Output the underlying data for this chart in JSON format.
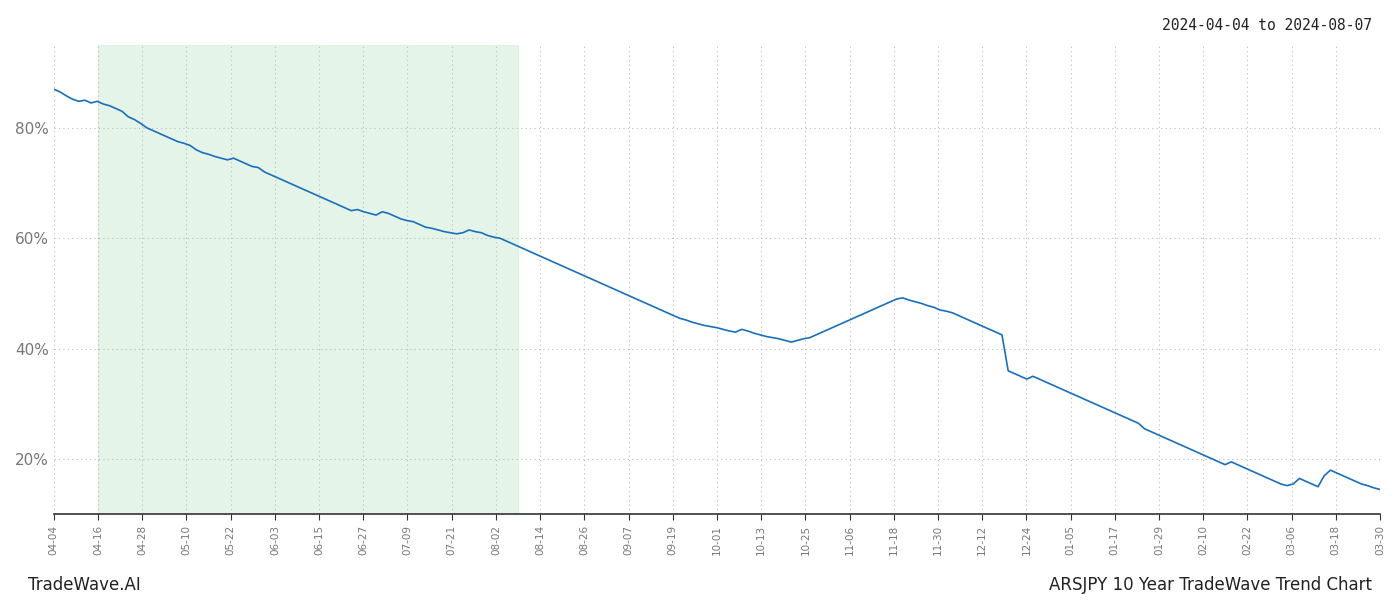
{
  "title_top_right": "2024-04-04 to 2024-08-07",
  "footer_left": "TradeWave.AI",
  "footer_right": "ARSJPY 10 Year TradeWave Trend Chart",
  "line_color": "#1a6fba",
  "line_width": 1.2,
  "shade_color": "#d4edda",
  "shade_alpha": 0.6,
  "background_color": "#ffffff",
  "grid_color": "#bbbbbb",
  "tick_label_color": "#777777",
  "x_labels": [
    "04-04",
    "04-16",
    "04-28",
    "05-10",
    "05-22",
    "06-03",
    "06-15",
    "06-27",
    "07-09",
    "07-21",
    "08-02",
    "08-14",
    "08-26",
    "09-07",
    "09-19",
    "10-01",
    "10-13",
    "10-25",
    "11-06",
    "11-18",
    "11-30",
    "12-12",
    "12-24",
    "01-05",
    "01-17",
    "01-29",
    "02-10",
    "02-22",
    "03-06",
    "03-18",
    "03-30"
  ],
  "shade_start_label": "04-16",
  "shade_end_label": "08-08",
  "ylim": [
    10,
    95
  ],
  "yticks": [
    20,
    40,
    60,
    80
  ],
  "y_values": [
    87.0,
    86.5,
    85.8,
    85.2,
    84.8,
    85.0,
    84.5,
    84.8,
    84.3,
    84.0,
    83.5,
    83.0,
    82.0,
    81.5,
    80.8,
    80.0,
    79.5,
    79.0,
    78.5,
    78.0,
    77.5,
    77.2,
    76.8,
    76.0,
    75.5,
    75.2,
    74.8,
    74.5,
    74.2,
    74.5,
    74.0,
    73.5,
    73.0,
    72.8,
    72.0,
    71.5,
    71.0,
    70.5,
    70.0,
    69.5,
    69.0,
    68.5,
    68.0,
    67.5,
    67.0,
    66.5,
    66.0,
    65.5,
    65.0,
    65.2,
    64.8,
    64.5,
    64.2,
    64.8,
    64.5,
    64.0,
    63.5,
    63.2,
    63.0,
    62.5,
    62.0,
    61.8,
    61.5,
    61.2,
    61.0,
    60.8,
    61.0,
    61.5,
    61.2,
    61.0,
    60.5,
    60.2,
    60.0,
    59.5,
    59.0,
    58.5,
    58.0,
    57.5,
    57.0,
    56.5,
    56.0,
    55.5,
    55.0,
    54.5,
    54.0,
    53.5,
    53.0,
    52.5,
    52.0,
    51.5,
    51.0,
    50.5,
    50.0,
    49.5,
    49.0,
    48.5,
    48.0,
    47.5,
    47.0,
    46.5,
    46.0,
    45.5,
    45.2,
    44.8,
    44.5,
    44.2,
    44.0,
    43.8,
    43.5,
    43.2,
    43.0,
    43.5,
    43.2,
    42.8,
    42.5,
    42.2,
    42.0,
    41.8,
    41.5,
    41.2,
    41.5,
    41.8,
    42.0,
    42.5,
    43.0,
    43.5,
    44.0,
    44.5,
    45.0,
    45.5,
    46.0,
    46.5,
    47.0,
    47.5,
    48.0,
    48.5,
    49.0,
    49.2,
    48.8,
    48.5,
    48.2,
    47.8,
    47.5,
    47.0,
    46.8,
    46.5,
    46.0,
    45.5,
    45.0,
    44.5,
    44.0,
    43.5,
    43.0,
    42.5,
    36.0,
    35.5,
    35.0,
    34.5,
    35.0,
    34.5,
    34.0,
    33.5,
    33.0,
    32.5,
    32.0,
    31.5,
    31.0,
    30.5,
    30.0,
    29.5,
    29.0,
    28.5,
    28.0,
    27.5,
    27.0,
    26.5,
    25.5,
    25.0,
    24.5,
    24.0,
    23.5,
    23.0,
    22.5,
    22.0,
    21.5,
    21.0,
    20.5,
    20.0,
    19.5,
    19.0,
    19.5,
    19.0,
    18.5,
    18.0,
    17.5,
    17.0,
    16.5,
    16.0,
    15.5,
    15.2,
    15.5,
    16.5,
    16.0,
    15.5,
    15.0,
    17.0,
    18.0,
    17.5,
    17.0,
    16.5,
    16.0,
    15.5,
    15.2,
    14.8,
    14.5
  ]
}
